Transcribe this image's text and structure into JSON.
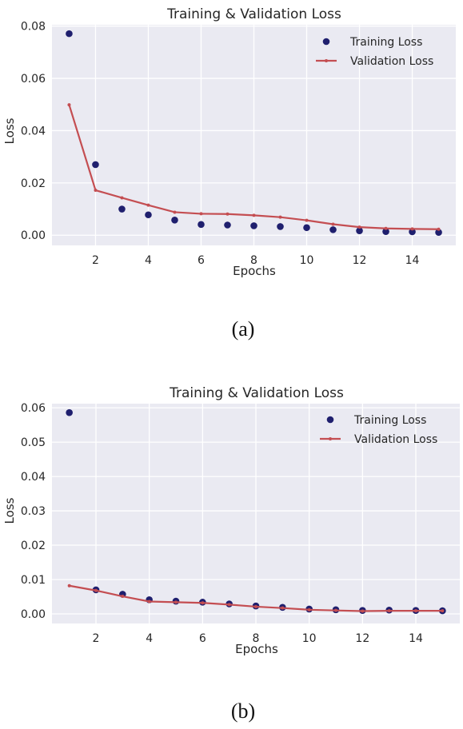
{
  "chart_data": [
    {
      "type": "line",
      "title": "Training & Validation Loss",
      "xlabel": "Epochs",
      "ylabel": "Loss",
      "caption": "(a)",
      "xlim": [
        0.35,
        15.65
      ],
      "ylim": [
        -0.0039,
        0.0805
      ],
      "xticks": [
        2,
        4,
        6,
        8,
        10,
        12,
        14
      ],
      "yticks": [
        0.0,
        0.02,
        0.04,
        0.06,
        0.08
      ],
      "ytick_labels": [
        "0.00",
        "0.02",
        "0.04",
        "0.06",
        "0.08"
      ],
      "grid": true,
      "legend_position": "top-right",
      "series": [
        {
          "name": "Training Loss",
          "style": "scatter",
          "color": "#1f1f6e",
          "x": [
            1,
            2,
            3,
            4,
            5,
            6,
            7,
            8,
            9,
            10,
            11,
            12,
            13,
            14,
            15
          ],
          "values": [
            0.0771,
            0.027,
            0.01,
            0.0078,
            0.0058,
            0.0041,
            0.0039,
            0.0036,
            0.0033,
            0.0029,
            0.0021,
            0.0017,
            0.0014,
            0.0013,
            0.0011
          ]
        },
        {
          "name": "Validation Loss",
          "style": "line",
          "color": "#c44e52",
          "x": [
            1,
            2,
            3,
            4,
            5,
            6,
            7,
            8,
            9,
            10,
            11,
            12,
            13,
            14,
            15
          ],
          "values": [
            0.0499,
            0.0172,
            0.0143,
            0.0115,
            0.0088,
            0.0082,
            0.0081,
            0.0076,
            0.0069,
            0.0057,
            0.0042,
            0.0031,
            0.0026,
            0.0024,
            0.0023
          ]
        }
      ]
    },
    {
      "type": "line",
      "title": "Training & Validation Loss",
      "xlabel": "Epochs",
      "ylabel": "Loss",
      "caption": "(b)",
      "xlim": [
        0.35,
        15.65
      ],
      "ylim": [
        -0.0028,
        0.0612
      ],
      "xticks": [
        2,
        4,
        6,
        8,
        10,
        12,
        14
      ],
      "yticks": [
        0.0,
        0.01,
        0.02,
        0.03,
        0.04,
        0.05,
        0.06
      ],
      "ytick_labels": [
        "0.00",
        "0.01",
        "0.02",
        "0.03",
        "0.04",
        "0.05",
        "0.06"
      ],
      "grid": true,
      "legend_position": "top-right",
      "series": [
        {
          "name": "Training Loss",
          "style": "scatter",
          "color": "#1f1f6e",
          "x": [
            1,
            2,
            3,
            4,
            5,
            6,
            7,
            8,
            9,
            10,
            11,
            12,
            13,
            14,
            15
          ],
          "values": [
            0.0586,
            0.007,
            0.0057,
            0.0041,
            0.0037,
            0.0034,
            0.0029,
            0.0023,
            0.0019,
            0.0014,
            0.0012,
            0.001,
            0.0011,
            0.001,
            0.0009
          ]
        },
        {
          "name": "Validation Loss",
          "style": "line",
          "color": "#c44e52",
          "x": [
            1,
            2,
            3,
            4,
            5,
            6,
            7,
            8,
            9,
            10,
            11,
            12,
            13,
            14,
            15
          ],
          "values": [
            0.0082,
            0.0068,
            0.0051,
            0.0036,
            0.0034,
            0.0032,
            0.0027,
            0.0021,
            0.0017,
            0.0012,
            0.001,
            0.0008,
            0.0009,
            0.0009,
            0.0009
          ]
        }
      ]
    }
  ]
}
